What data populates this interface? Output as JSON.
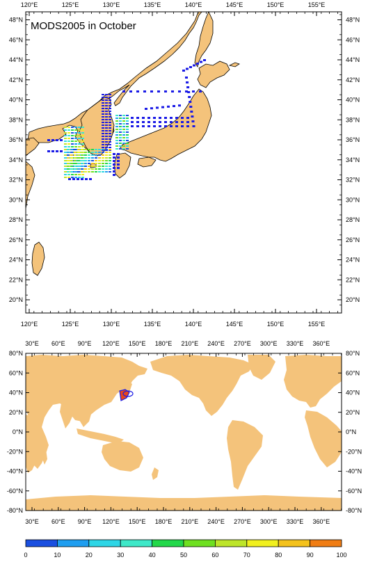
{
  "title": "MODS2005 in October",
  "colors": {
    "land": "#f4c37b",
    "sea": "#ffffff",
    "frame": "#000000",
    "track": "#1a1ae6"
  },
  "regional_map": {
    "lon_labels": [
      "120°E",
      "125°E",
      "130°E",
      "135°E",
      "140°E",
      "145°E",
      "150°E",
      "155°E"
    ],
    "lat_labels": [
      "48°N",
      "46°N",
      "44°N",
      "42°N",
      "40°N",
      "38°N",
      "36°N",
      "34°N",
      "32°N",
      "30°N",
      "28°N",
      "26°N",
      "24°N",
      "22°N",
      "20°N"
    ]
  },
  "global_map": {
    "lon_labels": [
      "30°E",
      "60°E",
      "90°E",
      "120°E",
      "150°E",
      "180°E",
      "210°E",
      "240°E",
      "270°E",
      "300°E",
      "330°E",
      "360°E"
    ],
    "lat_labels": [
      "80°N",
      "60°N",
      "40°N",
      "20°N",
      "0°N",
      "-20°N",
      "-40°N",
      "-60°N",
      "-80°N"
    ]
  },
  "colorbar": {
    "labels": [
      "0",
      "10",
      "20",
      "30",
      "40",
      "50",
      "60",
      "70",
      "80",
      "90",
      "100"
    ],
    "colors": [
      "#1a4fe0",
      "#1f9ef0",
      "#2ed6e6",
      "#3ee8c8",
      "#22d84a",
      "#6ee020",
      "#bde52a",
      "#f1f01e",
      "#f4c21c",
      "#f07d14",
      "#e8461a"
    ]
  }
}
